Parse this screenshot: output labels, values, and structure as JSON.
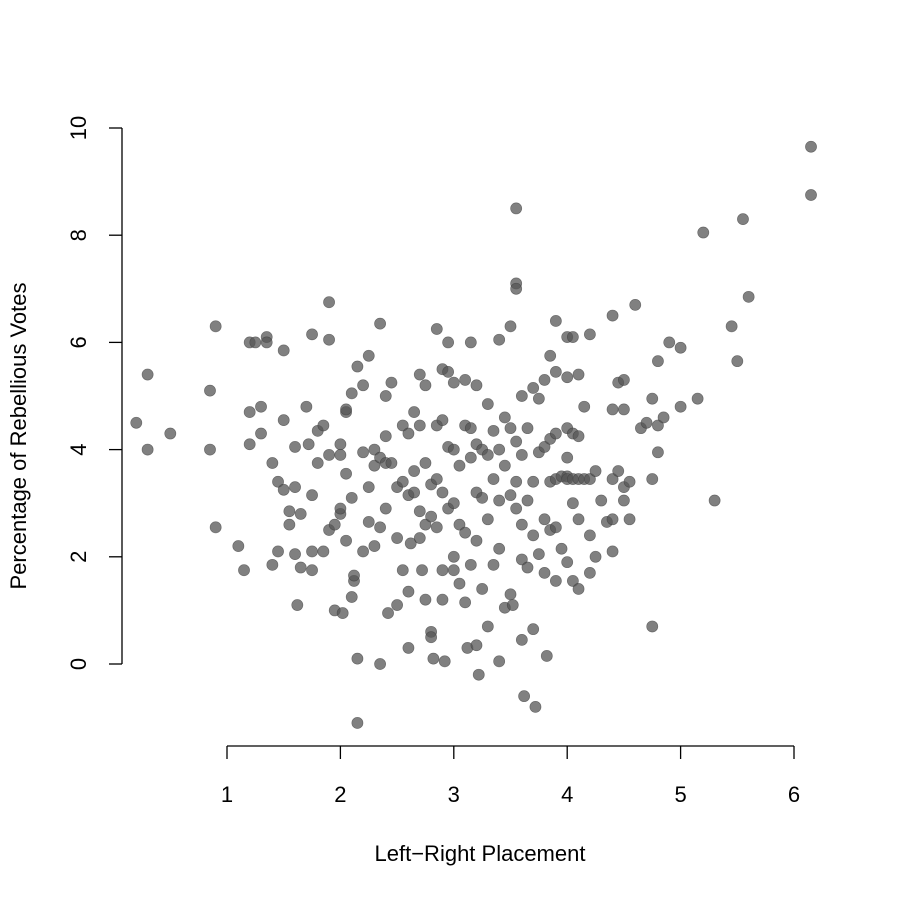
{
  "chart_data": {
    "type": "scatter",
    "title": "",
    "xlabel": "Left−Right Placement",
    "ylabel": "Percentage of Rebellious Votes",
    "xlim": [
      0.3,
      6.3
    ],
    "ylim": [
      -1.2,
      10.2
    ],
    "x_ticks": [
      1,
      2,
      3,
      4,
      5,
      6
    ],
    "y_ticks": [
      0,
      2,
      4,
      6,
      8,
      10
    ],
    "x_tick_labels": [
      "1",
      "2",
      "3",
      "4",
      "5",
      "6"
    ],
    "y_tick_labels": [
      "0",
      "2",
      "4",
      "6",
      "8",
      "10"
    ],
    "grid": false,
    "marker_color": "#555555",
    "marker_opacity": 0.75,
    "points": [
      [
        0.2,
        4.5
      ],
      [
        0.3,
        5.4
      ],
      [
        0.3,
        4.0
      ],
      [
        0.5,
        4.3
      ],
      [
        0.85,
        5.1
      ],
      [
        0.85,
        4.0
      ],
      [
        0.9,
        6.3
      ],
      [
        0.9,
        2.55
      ],
      [
        1.1,
        2.2
      ],
      [
        1.15,
        1.75
      ],
      [
        1.2,
        6.0
      ],
      [
        1.2,
        4.7
      ],
      [
        1.2,
        4.1
      ],
      [
        1.25,
        6.0
      ],
      [
        1.3,
        4.3
      ],
      [
        1.3,
        4.8
      ],
      [
        1.35,
        6.1
      ],
      [
        1.35,
        6.0
      ],
      [
        1.4,
        3.75
      ],
      [
        1.4,
        1.85
      ],
      [
        1.45,
        2.1
      ],
      [
        1.45,
        3.4
      ],
      [
        1.5,
        5.85
      ],
      [
        1.5,
        4.55
      ],
      [
        1.5,
        3.25
      ],
      [
        1.55,
        2.85
      ],
      [
        1.55,
        2.6
      ],
      [
        1.6,
        4.05
      ],
      [
        1.6,
        3.3
      ],
      [
        1.6,
        2.05
      ],
      [
        1.62,
        1.1
      ],
      [
        1.65,
        1.8
      ],
      [
        1.65,
        2.8
      ],
      [
        1.7,
        4.8
      ],
      [
        1.72,
        4.1
      ],
      [
        1.75,
        6.15
      ],
      [
        1.75,
        3.15
      ],
      [
        1.75,
        2.1
      ],
      [
        1.75,
        1.75
      ],
      [
        1.8,
        3.75
      ],
      [
        1.8,
        4.35
      ],
      [
        1.85,
        4.45
      ],
      [
        1.85,
        2.1
      ],
      [
        1.9,
        6.75
      ],
      [
        1.9,
        6.05
      ],
      [
        1.9,
        3.9
      ],
      [
        1.9,
        2.5
      ],
      [
        1.95,
        2.6
      ],
      [
        1.95,
        1.0
      ],
      [
        2.0,
        4.1
      ],
      [
        2.0,
        3.9
      ],
      [
        2.0,
        2.8
      ],
      [
        2.0,
        2.9
      ],
      [
        2.02,
        0.95
      ],
      [
        2.05,
        4.7
      ],
      [
        2.05,
        4.75
      ],
      [
        2.05,
        3.55
      ],
      [
        2.05,
        2.3
      ],
      [
        2.1,
        5.05
      ],
      [
        2.1,
        3.1
      ],
      [
        2.1,
        1.25
      ],
      [
        2.12,
        1.55
      ],
      [
        2.12,
        1.65
      ],
      [
        2.15,
        5.55
      ],
      [
        2.15,
        0.1
      ],
      [
        2.15,
        -1.1
      ],
      [
        2.2,
        5.2
      ],
      [
        2.2,
        3.95
      ],
      [
        2.2,
        2.1
      ],
      [
        2.25,
        5.75
      ],
      [
        2.25,
        2.65
      ],
      [
        2.25,
        3.3
      ],
      [
        2.3,
        4.0
      ],
      [
        2.3,
        3.7
      ],
      [
        2.3,
        2.2
      ],
      [
        2.35,
        6.35
      ],
      [
        2.35,
        3.85
      ],
      [
        2.35,
        2.55
      ],
      [
        2.35,
        0.0
      ],
      [
        2.4,
        5.0
      ],
      [
        2.4,
        4.25
      ],
      [
        2.4,
        3.75
      ],
      [
        2.4,
        2.9
      ],
      [
        2.42,
        0.95
      ],
      [
        2.45,
        5.25
      ],
      [
        2.45,
        3.75
      ],
      [
        2.5,
        3.3
      ],
      [
        2.5,
        2.35
      ],
      [
        2.5,
        1.1
      ],
      [
        2.55,
        4.45
      ],
      [
        2.55,
        3.4
      ],
      [
        2.55,
        1.75
      ],
      [
        2.6,
        4.3
      ],
      [
        2.6,
        3.15
      ],
      [
        2.6,
        1.35
      ],
      [
        2.6,
        0.3
      ],
      [
        2.62,
        2.25
      ],
      [
        2.65,
        4.7
      ],
      [
        2.65,
        3.6
      ],
      [
        2.65,
        3.2
      ],
      [
        2.7,
        5.4
      ],
      [
        2.7,
        4.45
      ],
      [
        2.7,
        2.85
      ],
      [
        2.7,
        2.35
      ],
      [
        2.72,
        1.75
      ],
      [
        2.75,
        5.2
      ],
      [
        2.75,
        3.75
      ],
      [
        2.75,
        2.6
      ],
      [
        2.75,
        1.2
      ],
      [
        2.8,
        3.35
      ],
      [
        2.8,
        2.75
      ],
      [
        2.8,
        0.6
      ],
      [
        2.8,
        0.5
      ],
      [
        2.82,
        0.1
      ],
      [
        2.85,
        6.25
      ],
      [
        2.85,
        4.45
      ],
      [
        2.85,
        3.45
      ],
      [
        2.85,
        2.55
      ],
      [
        2.9,
        5.5
      ],
      [
        2.9,
        4.55
      ],
      [
        2.9,
        3.2
      ],
      [
        2.9,
        1.75
      ],
      [
        2.9,
        1.2
      ],
      [
        2.92,
        0.05
      ],
      [
        2.95,
        6.0
      ],
      [
        2.95,
        5.45
      ],
      [
        2.95,
        4.05
      ],
      [
        2.95,
        2.9
      ],
      [
        3.0,
        5.25
      ],
      [
        3.0,
        4.0
      ],
      [
        3.0,
        3.0
      ],
      [
        3.0,
        2.0
      ],
      [
        3.0,
        1.75
      ],
      [
        3.05,
        3.7
      ],
      [
        3.05,
        2.6
      ],
      [
        3.05,
        1.5
      ],
      [
        3.1,
        5.3
      ],
      [
        3.1,
        4.45
      ],
      [
        3.1,
        2.45
      ],
      [
        3.1,
        1.15
      ],
      [
        3.12,
        0.3
      ],
      [
        3.15,
        6.0
      ],
      [
        3.15,
        4.4
      ],
      [
        3.15,
        3.85
      ],
      [
        3.15,
        1.85
      ],
      [
        3.2,
        5.2
      ],
      [
        3.2,
        4.1
      ],
      [
        3.2,
        3.2
      ],
      [
        3.2,
        2.3
      ],
      [
        3.2,
        0.35
      ],
      [
        3.22,
        -0.2
      ],
      [
        3.25,
        4.0
      ],
      [
        3.25,
        3.1
      ],
      [
        3.25,
        1.4
      ],
      [
        3.3,
        4.85
      ],
      [
        3.3,
        3.9
      ],
      [
        3.3,
        2.7
      ],
      [
        3.3,
        0.7
      ],
      [
        3.35,
        4.35
      ],
      [
        3.35,
        3.45
      ],
      [
        3.35,
        1.85
      ],
      [
        3.4,
        6.05
      ],
      [
        3.4,
        4.0
      ],
      [
        3.4,
        3.05
      ],
      [
        3.4,
        2.15
      ],
      [
        3.4,
        0.05
      ],
      [
        3.45,
        4.6
      ],
      [
        3.45,
        3.7
      ],
      [
        3.45,
        1.05
      ],
      [
        3.5,
        6.3
      ],
      [
        3.5,
        4.4
      ],
      [
        3.5,
        3.15
      ],
      [
        3.5,
        1.3
      ],
      [
        3.52,
        1.1
      ],
      [
        3.55,
        8.5
      ],
      [
        3.55,
        7.1
      ],
      [
        3.55,
        7.0
      ],
      [
        3.55,
        4.15
      ],
      [
        3.55,
        3.4
      ],
      [
        3.55,
        2.9
      ],
      [
        3.6,
        5.0
      ],
      [
        3.6,
        3.9
      ],
      [
        3.6,
        2.6
      ],
      [
        3.6,
        1.95
      ],
      [
        3.6,
        0.45
      ],
      [
        3.62,
        -0.6
      ],
      [
        3.65,
        4.4
      ],
      [
        3.65,
        3.05
      ],
      [
        3.65,
        1.8
      ],
      [
        3.7,
        5.15
      ],
      [
        3.7,
        3.4
      ],
      [
        3.7,
        2.4
      ],
      [
        3.7,
        0.65
      ],
      [
        3.72,
        -0.8
      ],
      [
        3.75,
        4.95
      ],
      [
        3.75,
        3.95
      ],
      [
        3.75,
        2.05
      ],
      [
        3.8,
        5.3
      ],
      [
        3.8,
        4.05
      ],
      [
        3.8,
        2.7
      ],
      [
        3.8,
        1.7
      ],
      [
        3.82,
        0.15
      ],
      [
        3.85,
        5.75
      ],
      [
        3.85,
        4.2
      ],
      [
        3.85,
        3.4
      ],
      [
        3.85,
        2.5
      ],
      [
        3.9,
        6.4
      ],
      [
        3.9,
        5.45
      ],
      [
        3.9,
        4.3
      ],
      [
        3.9,
        3.45
      ],
      [
        3.9,
        2.55
      ],
      [
        3.9,
        1.55
      ],
      [
        3.95,
        3.5
      ],
      [
        3.95,
        2.15
      ],
      [
        4.0,
        6.1
      ],
      [
        4.0,
        5.35
      ],
      [
        4.0,
        4.4
      ],
      [
        4.0,
        3.85
      ],
      [
        4.0,
        3.5
      ],
      [
        4.0,
        3.45
      ],
      [
        4.0,
        1.9
      ],
      [
        4.05,
        6.1
      ],
      [
        4.05,
        4.3
      ],
      [
        4.05,
        3.45
      ],
      [
        4.05,
        3.0
      ],
      [
        4.05,
        1.55
      ],
      [
        4.1,
        5.4
      ],
      [
        4.1,
        4.25
      ],
      [
        4.1,
        3.45
      ],
      [
        4.1,
        2.7
      ],
      [
        4.1,
        1.4
      ],
      [
        4.15,
        4.8
      ],
      [
        4.15,
        3.45
      ],
      [
        4.2,
        6.15
      ],
      [
        4.2,
        3.45
      ],
      [
        4.2,
        2.4
      ],
      [
        4.2,
        1.7
      ],
      [
        4.25,
        3.6
      ],
      [
        4.25,
        2.0
      ],
      [
        4.3,
        3.05
      ],
      [
        4.35,
        2.65
      ],
      [
        4.4,
        6.5
      ],
      [
        4.4,
        4.75
      ],
      [
        4.4,
        3.45
      ],
      [
        4.4,
        2.7
      ],
      [
        4.4,
        2.1
      ],
      [
        4.45,
        5.25
      ],
      [
        4.45,
        3.6
      ],
      [
        4.5,
        5.3
      ],
      [
        4.5,
        4.75
      ],
      [
        4.5,
        3.3
      ],
      [
        4.5,
        3.05
      ],
      [
        4.55,
        3.4
      ],
      [
        4.55,
        2.7
      ],
      [
        4.6,
        6.7
      ],
      [
        4.65,
        4.4
      ],
      [
        4.7,
        4.5
      ],
      [
        4.75,
        4.95
      ],
      [
        4.75,
        3.45
      ],
      [
        4.75,
        0.7
      ],
      [
        4.8,
        5.65
      ],
      [
        4.8,
        4.45
      ],
      [
        4.8,
        3.95
      ],
      [
        4.85,
        4.6
      ],
      [
        4.9,
        6.0
      ],
      [
        5.0,
        5.9
      ],
      [
        5.0,
        4.8
      ],
      [
        5.15,
        4.95
      ],
      [
        5.2,
        8.05
      ],
      [
        5.3,
        3.05
      ],
      [
        5.45,
        6.3
      ],
      [
        5.5,
        5.65
      ],
      [
        5.55,
        8.3
      ],
      [
        5.6,
        6.85
      ],
      [
        6.15,
        9.65
      ],
      [
        6.15,
        8.75
      ]
    ]
  }
}
